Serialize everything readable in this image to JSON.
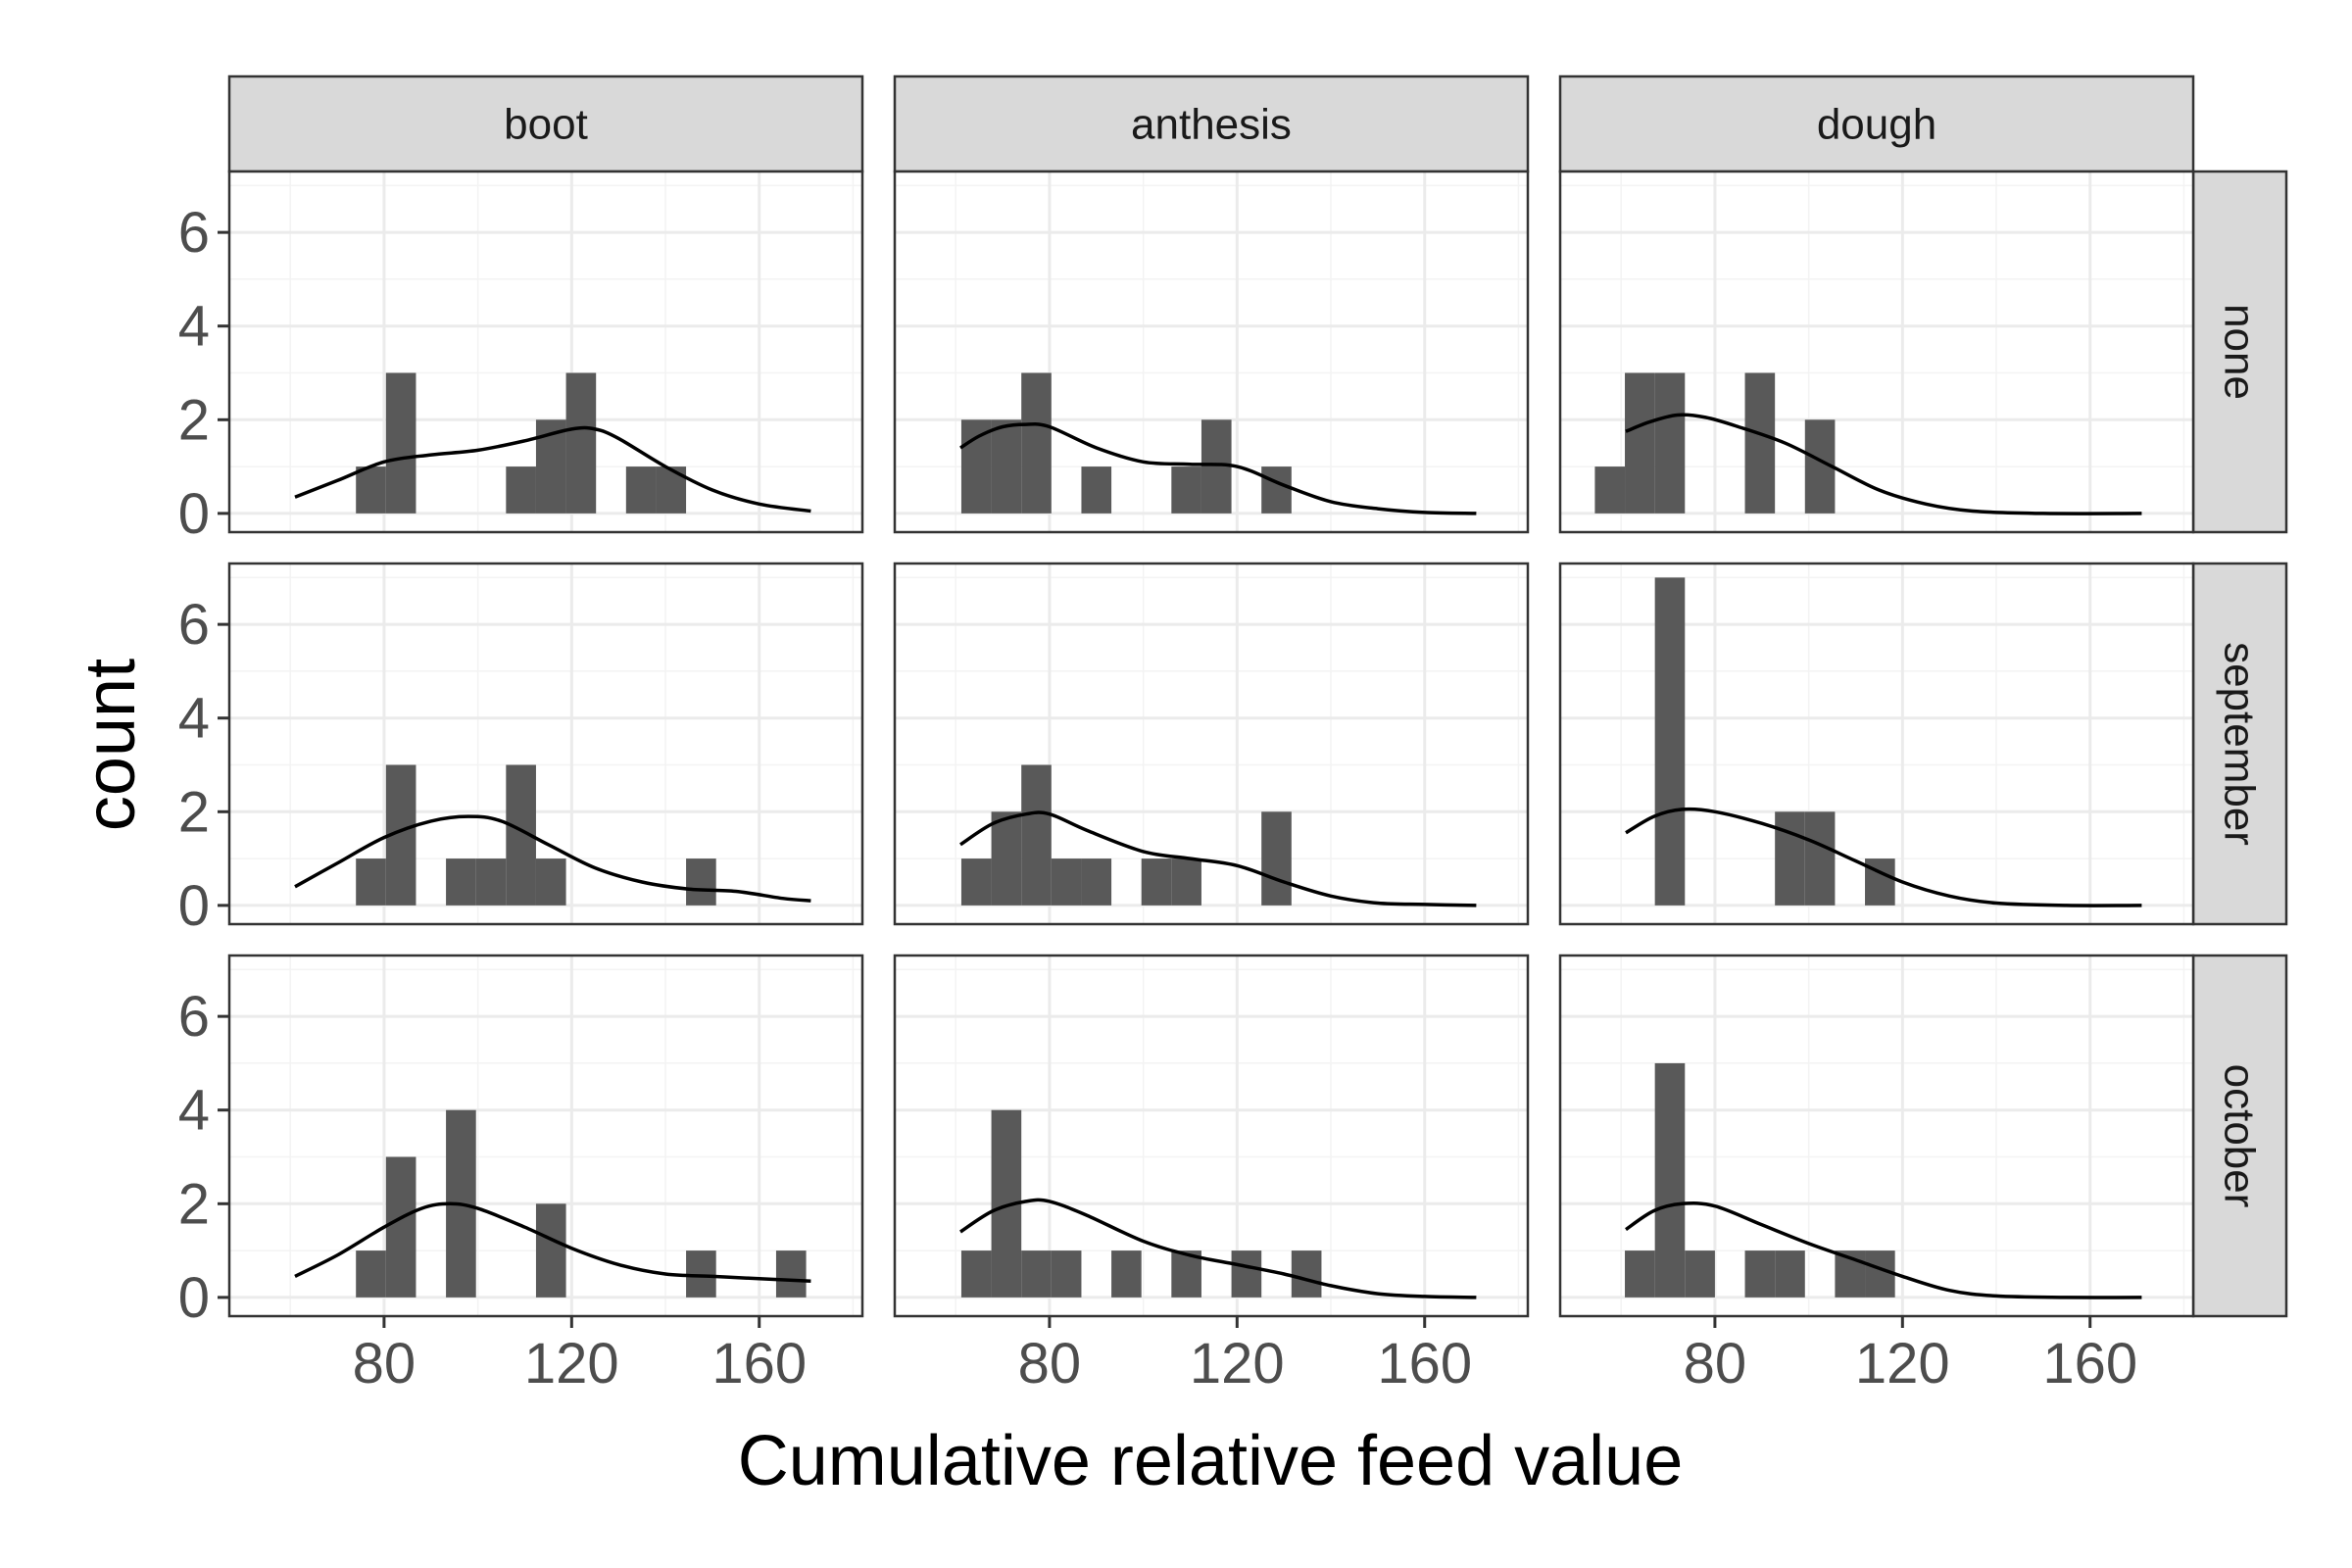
{
  "chart_data": {
    "type": "histogram-facet-grid",
    "xlabel": "Cumulative relative feed value",
    "ylabel": "count",
    "columns": [
      "boot",
      "anthesis",
      "dough"
    ],
    "rows": [
      "none",
      "september",
      "october"
    ],
    "xlim": [
      47,
      182
    ],
    "ylim": [
      -0.4,
      7.3
    ],
    "x_ticks": [
      80,
      120,
      160
    ],
    "y_ticks": [
      0,
      2,
      4,
      6
    ],
    "bin_width": 6.4,
    "colors": {
      "bar": "#595959",
      "density": "#000000",
      "strip": "#d9d9d9",
      "grid": "#ebebeb"
    },
    "panels": [
      {
        "column": "boot",
        "row": "none",
        "bins": [
          [
            77.2,
            1
          ],
          [
            83.6,
            3
          ],
          [
            109.2,
            1
          ],
          [
            115.6,
            2
          ],
          [
            122.0,
            3
          ],
          [
            134.8,
            1
          ],
          [
            141.2,
            1
          ]
        ],
        "density": [
          [
            61,
            0.35
          ],
          [
            70,
            0.7
          ],
          [
            80,
            1.1
          ],
          [
            90,
            1.25
          ],
          [
            100,
            1.35
          ],
          [
            110,
            1.55
          ],
          [
            120,
            1.8
          ],
          [
            125,
            1.8
          ],
          [
            130,
            1.6
          ],
          [
            140,
            1.0
          ],
          [
            150,
            0.5
          ],
          [
            160,
            0.2
          ],
          [
            171,
            0.05
          ]
        ]
      },
      {
        "column": "anthesis",
        "row": "none",
        "bins": [
          [
            64.4,
            2
          ],
          [
            70.8,
            2
          ],
          [
            77.2,
            3
          ],
          [
            90.0,
            1
          ],
          [
            109.2,
            1
          ],
          [
            115.6,
            2
          ],
          [
            128.4,
            1
          ]
        ],
        "density": [
          [
            61,
            1.4
          ],
          [
            65,
            1.65
          ],
          [
            70,
            1.85
          ],
          [
            75,
            1.9
          ],
          [
            80,
            1.85
          ],
          [
            90,
            1.4
          ],
          [
            100,
            1.1
          ],
          [
            110,
            1.05
          ],
          [
            120,
            1.0
          ],
          [
            130,
            0.6
          ],
          [
            140,
            0.25
          ],
          [
            150,
            0.1
          ],
          [
            160,
            0.02
          ],
          [
            171,
            0.0
          ]
        ]
      },
      {
        "column": "dough",
        "row": "none",
        "bins": [
          [
            57.6,
            1
          ],
          [
            64.0,
            3
          ],
          [
            70.4,
            3
          ],
          [
            89.6,
            3
          ],
          [
            102.4,
            2
          ]
        ],
        "density": [
          [
            61,
            1.75
          ],
          [
            66,
            1.95
          ],
          [
            72,
            2.1
          ],
          [
            78,
            2.05
          ],
          [
            85,
            1.85
          ],
          [
            95,
            1.5
          ],
          [
            105,
            1.0
          ],
          [
            115,
            0.5
          ],
          [
            125,
            0.2
          ],
          [
            135,
            0.05
          ],
          [
            150,
            0.0
          ],
          [
            171,
            0.0
          ]
        ]
      },
      {
        "column": "boot",
        "row": "september",
        "bins": [
          [
            77.2,
            1
          ],
          [
            83.6,
            3
          ],
          [
            96.4,
            1
          ],
          [
            102.8,
            1
          ],
          [
            109.2,
            3
          ],
          [
            115.6,
            1
          ],
          [
            147.6,
            1
          ]
        ],
        "density": [
          [
            61,
            0.4
          ],
          [
            70,
            0.9
          ],
          [
            80,
            1.45
          ],
          [
            90,
            1.8
          ],
          [
            98,
            1.9
          ],
          [
            105,
            1.8
          ],
          [
            115,
            1.3
          ],
          [
            125,
            0.8
          ],
          [
            135,
            0.5
          ],
          [
            145,
            0.35
          ],
          [
            155,
            0.3
          ],
          [
            165,
            0.15
          ],
          [
            171,
            0.1
          ]
        ]
      },
      {
        "column": "anthesis",
        "row": "september",
        "bins": [
          [
            64.4,
            1
          ],
          [
            70.8,
            2
          ],
          [
            77.2,
            3
          ],
          [
            83.6,
            1
          ],
          [
            90.0,
            1
          ],
          [
            102.8,
            1
          ],
          [
            109.2,
            1
          ],
          [
            128.4,
            2
          ]
        ],
        "density": [
          [
            61,
            1.3
          ],
          [
            68,
            1.75
          ],
          [
            75,
            1.95
          ],
          [
            80,
            1.95
          ],
          [
            88,
            1.6
          ],
          [
            100,
            1.15
          ],
          [
            110,
            1.0
          ],
          [
            120,
            0.85
          ],
          [
            130,
            0.5
          ],
          [
            140,
            0.2
          ],
          [
            150,
            0.05
          ],
          [
            160,
            0.02
          ],
          [
            171,
            0.0
          ]
        ]
      },
      {
        "column": "dough",
        "row": "september",
        "bins": [
          [
            70.4,
            7
          ],
          [
            96.0,
            2
          ],
          [
            102.4,
            2
          ],
          [
            115.2,
            1
          ]
        ],
        "density": [
          [
            61,
            1.55
          ],
          [
            67,
            1.9
          ],
          [
            73,
            2.05
          ],
          [
            80,
            2.0
          ],
          [
            90,
            1.75
          ],
          [
            100,
            1.4
          ],
          [
            110,
            0.95
          ],
          [
            120,
            0.5
          ],
          [
            130,
            0.2
          ],
          [
            140,
            0.05
          ],
          [
            155,
            0.0
          ],
          [
            171,
            0.0
          ]
        ]
      },
      {
        "column": "boot",
        "row": "october",
        "bins": [
          [
            77.2,
            1
          ],
          [
            83.6,
            3
          ],
          [
            96.4,
            4
          ],
          [
            115.6,
            2
          ],
          [
            147.6,
            1
          ],
          [
            166.8,
            1
          ]
        ],
        "density": [
          [
            61,
            0.45
          ],
          [
            70,
            0.9
          ],
          [
            80,
            1.5
          ],
          [
            88,
            1.9
          ],
          [
            94,
            2.0
          ],
          [
            100,
            1.9
          ],
          [
            110,
            1.5
          ],
          [
            120,
            1.05
          ],
          [
            130,
            0.7
          ],
          [
            140,
            0.5
          ],
          [
            150,
            0.45
          ],
          [
            160,
            0.4
          ],
          [
            171,
            0.35
          ]
        ]
      },
      {
        "column": "anthesis",
        "row": "october",
        "bins": [
          [
            64.4,
            1
          ],
          [
            70.8,
            4
          ],
          [
            77.2,
            1
          ],
          [
            83.6,
            1
          ],
          [
            96.4,
            1
          ],
          [
            109.2,
            1
          ],
          [
            122.0,
            1
          ],
          [
            134.8,
            1
          ]
        ],
        "density": [
          [
            61,
            1.4
          ],
          [
            68,
            1.85
          ],
          [
            75,
            2.05
          ],
          [
            80,
            2.05
          ],
          [
            88,
            1.75
          ],
          [
            100,
            1.2
          ],
          [
            110,
            0.9
          ],
          [
            120,
            0.7
          ],
          [
            130,
            0.5
          ],
          [
            140,
            0.25
          ],
          [
            150,
            0.08
          ],
          [
            160,
            0.02
          ],
          [
            171,
            0.0
          ]
        ]
      },
      {
        "column": "dough",
        "row": "october",
        "bins": [
          [
            64.0,
            1
          ],
          [
            70.4,
            5
          ],
          [
            76.8,
            1
          ],
          [
            89.6,
            1
          ],
          [
            96.0,
            1
          ],
          [
            108.8,
            1
          ],
          [
            115.2,
            1
          ]
        ],
        "density": [
          [
            61,
            1.45
          ],
          [
            67,
            1.85
          ],
          [
            73,
            2.0
          ],
          [
            80,
            1.95
          ],
          [
            90,
            1.55
          ],
          [
            100,
            1.15
          ],
          [
            110,
            0.8
          ],
          [
            120,
            0.45
          ],
          [
            130,
            0.15
          ],
          [
            140,
            0.03
          ],
          [
            155,
            0.0
          ],
          [
            171,
            0.0
          ]
        ]
      }
    ]
  }
}
